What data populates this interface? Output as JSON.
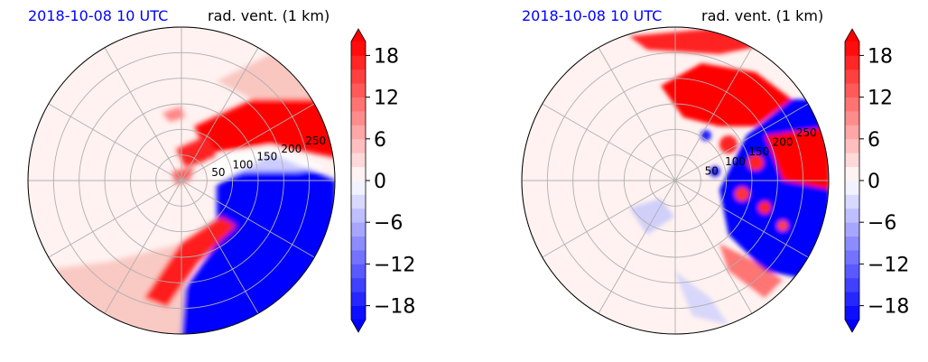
{
  "colors": {
    "title_left": "#0000ff",
    "neg_max": "#0000ff",
    "pos_max": "#ff0000",
    "neutral": "#ffffff",
    "grid": "#b0b0b0"
  },
  "chart_data": [
    {
      "type": "heatmap",
      "projection": "polar",
      "title_left": "2018-10-08 10 UTC",
      "title_right": "rad. vent. (1 km)",
      "radial_ticks": [
        "50",
        "100",
        "150",
        "200",
        "250"
      ],
      "radial_tick_values": [
        50,
        100,
        150,
        200,
        250
      ],
      "radial_max": 300,
      "colorbar": {
        "min": -20,
        "max": 20,
        "extend": "both",
        "ticks": [
          18,
          12,
          6,
          0,
          -6,
          -12,
          -18
        ],
        "tick_labels": [
          "18",
          "12",
          "6",
          "0",
          "−6",
          "−12",
          "−18"
        ]
      }
    },
    {
      "type": "heatmap",
      "projection": "polar",
      "title_left": "2018-10-08 10 UTC",
      "title_right": "rad. vent. (1 km)",
      "radial_ticks": [
        "50",
        "100",
        "150",
        "200",
        "250"
      ],
      "radial_tick_values": [
        50,
        100,
        150,
        200,
        250
      ],
      "radial_max": 300,
      "colorbar": {
        "min": -20,
        "max": 20,
        "extend": "both",
        "ticks": [
          18,
          12,
          6,
          0,
          -6,
          -12,
          -18
        ],
        "tick_labels": [
          "18",
          "12",
          "6",
          "0",
          "−6",
          "−12",
          "−18"
        ]
      }
    }
  ]
}
